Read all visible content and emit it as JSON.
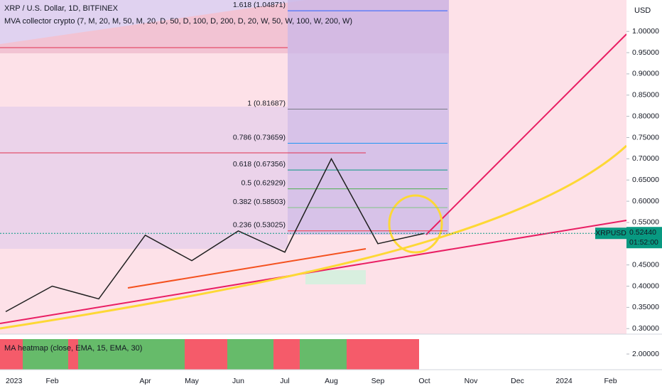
{
  "chart_data": {
    "type": "line",
    "title": "XRP / U.S. Dollar, 1D, BITFINEX",
    "subtitle": "MVA collector crypto (7, M, 20, M, 50, M, 20, D, 50, D, 100, D, 200, D, 20, W, 50, W, 100, W, 200, W)",
    "currency": "USD",
    "categories": [
      "2023",
      "Feb",
      null,
      "Apr",
      "May",
      "Jun",
      "Jul",
      "Aug",
      "Sep",
      "Oct",
      "Nov",
      "Dec",
      "2024",
      "Feb"
    ],
    "series": [
      {
        "name": "XRPUSD",
        "color": "#1f1f1f",
        "values": [
          0.34,
          0.4,
          0.37,
          0.52,
          0.46,
          0.53,
          0.48,
          0.7,
          0.5,
          0.5244,
          null,
          null,
          null,
          null
        ]
      }
    ],
    "last_price": {
      "value": 0.5244,
      "label": "0.52440"
    },
    "countdown": "01:52:00",
    "ylim": [
      0.287,
      1.074
    ],
    "yticks": [
      {
        "value": 0.3,
        "label": "0.30000"
      },
      {
        "value": 0.35,
        "label": "0.35000"
      },
      {
        "value": 0.4,
        "label": "0.40000"
      },
      {
        "value": 0.45,
        "label": "0.45000"
      },
      {
        "value": 0.5,
        "label": "0.50000"
      },
      {
        "value": 0.55,
        "label": "0.55000"
      },
      {
        "value": 0.6,
        "label": "0.60000"
      },
      {
        "value": 0.65,
        "label": "0.65000"
      },
      {
        "value": 0.7,
        "label": "0.70000"
      },
      {
        "value": 0.75,
        "label": "0.75000"
      },
      {
        "value": 0.8,
        "label": "0.80000"
      },
      {
        "value": 0.85,
        "label": "0.85000"
      },
      {
        "value": 0.9,
        "label": "0.90000"
      },
      {
        "value": 0.95,
        "label": "0.95000"
      },
      {
        "value": 1.0,
        "label": "1.00000"
      }
    ],
    "fib_levels": [
      {
        "label": "1.618 (1.04871)",
        "value": 1.04871,
        "color": "#2962ff"
      },
      {
        "label": "1 (0.81687)",
        "value": 0.81687,
        "color": "#787b86"
      },
      {
        "label": "0.786 (0.73659)",
        "value": 0.73659,
        "color": "#2196f3"
      },
      {
        "label": "0.618 (0.67356)",
        "value": 0.67356,
        "color": "#089981"
      },
      {
        "label": "0.5 (0.62929)",
        "value": 0.62929,
        "color": "#4caf50"
      },
      {
        "label": "0.382 (0.58503)",
        "value": 0.58503,
        "color": "#81c784"
      },
      {
        "label": "0.236 (0.53025)",
        "value": 0.53025,
        "color": "#f23645"
      }
    ],
    "heatmap": {
      "title": "MA heatmap (close, EMA, 15, EMA, 30)",
      "tick": {
        "value": 2,
        "label": "2.00000"
      }
    }
  }
}
